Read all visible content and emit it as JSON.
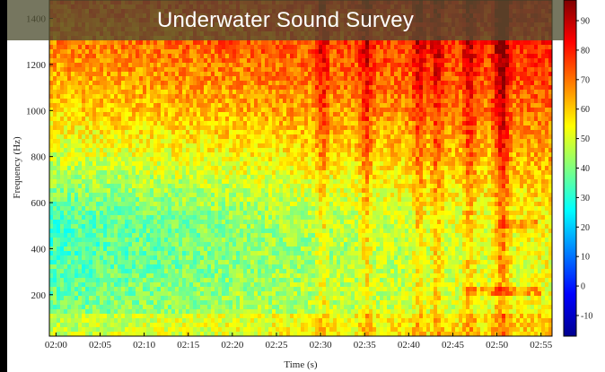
{
  "chart_data": {
    "type": "heatmap",
    "title": "Underwater Sound Survey",
    "xlabel": "Time (s)",
    "ylabel": "Frequency (Hz)",
    "colorbar_label": "",
    "x_ticks": [
      "02:00",
      "02:05",
      "02:10",
      "02:15",
      "02:20",
      "02:25",
      "02:30",
      "02:35",
      "02:40",
      "02:45",
      "02:50",
      "02:55"
    ],
    "x_tick_seconds": [
      7200,
      7500,
      7800,
      8100,
      8400,
      8700,
      9000,
      9300,
      9600,
      9900,
      10200,
      10500
    ],
    "xlim_seconds": [
      7155,
      10575
    ],
    "ylim": [
      20,
      1480
    ],
    "y_ticks": [
      200,
      400,
      600,
      800,
      1000,
      1200,
      1400
    ],
    "colorbar_ticks": [
      -10,
      0,
      10,
      20,
      30,
      40,
      50,
      60,
      70,
      80,
      90
    ],
    "colorbar_range": [
      -17,
      97
    ],
    "colormap": "jet",
    "vertical_events_seconds": [
      9000,
      9300,
      9660,
      9780,
      10000,
      10200,
      10240
    ],
    "tonal_lines": [
      {
        "freq": 520,
        "start_seconds": 10200,
        "end_seconds": 10470
      },
      {
        "freq": 230,
        "start_seconds": 9960,
        "end_seconds": 10500
      }
    ]
  },
  "colors": {
    "frame": "#000000",
    "title_band": "#50502f",
    "title_text": "#ffffff"
  }
}
